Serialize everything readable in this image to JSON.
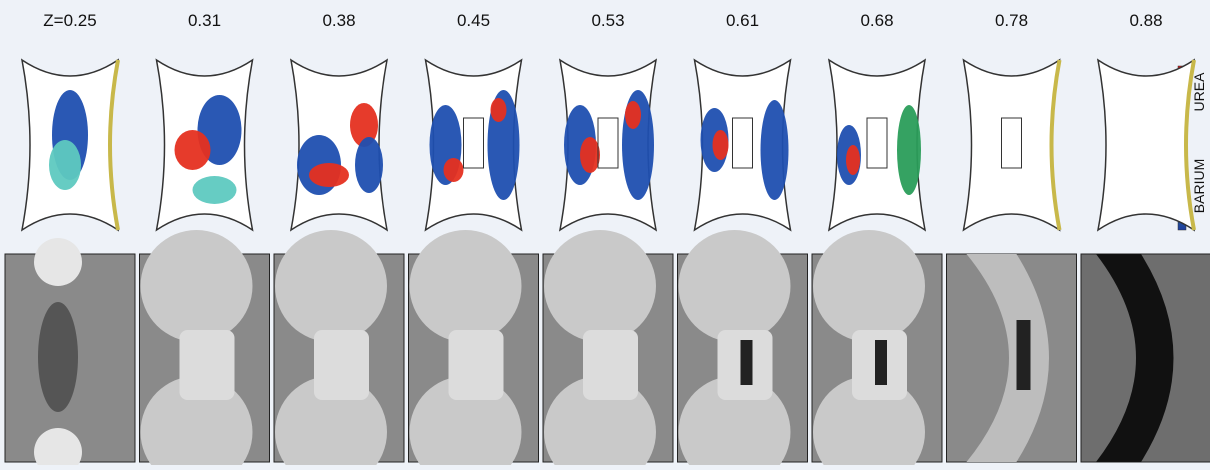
{
  "panels": [
    {
      "label": "Z=0.25"
    },
    {
      "label": "0.31"
    },
    {
      "label": "0.38"
    },
    {
      "label": "0.45"
    },
    {
      "label": "0.53"
    },
    {
      "label": "0.61"
    },
    {
      "label": "0.68"
    },
    {
      "label": "0.78"
    },
    {
      "label": "0.88"
    }
  ],
  "colorbar": {
    "top_label": "UREA",
    "bottom_label": "BARIUM"
  }
}
